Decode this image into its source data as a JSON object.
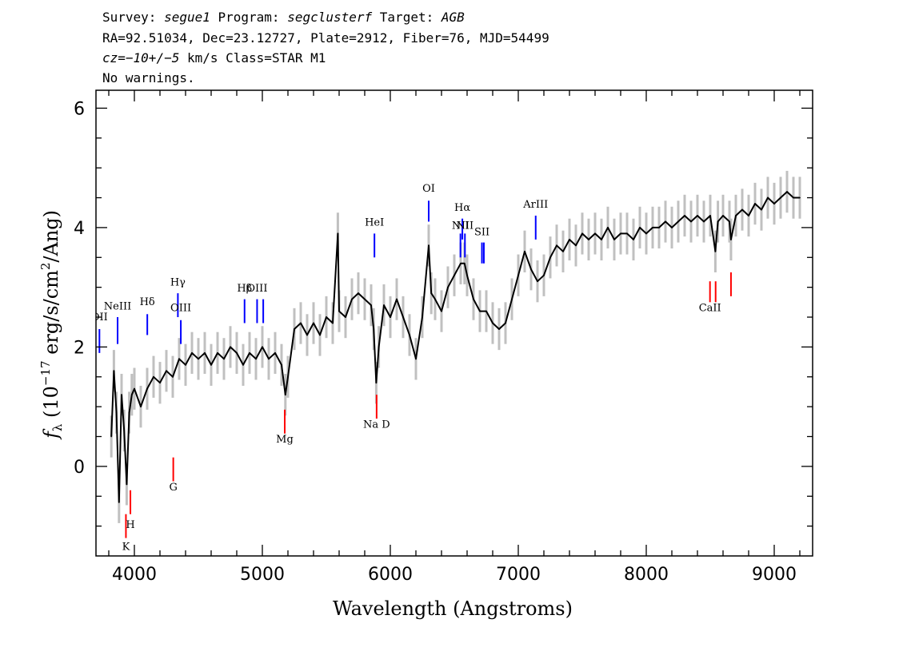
{
  "header": {
    "line1": {
      "p1": "Survey: ",
      "survey": "segue1",
      "p2": " Program: ",
      "program": "segclusterf",
      "p3": " Target: ",
      "target": "AGB"
    },
    "line2": "RA=92.51034, Dec=23.12727, Plate=2912, Fiber=76, MJD=54499",
    "line3": {
      "cz": "cz",
      "eq": "=",
      "val": "−10+/−5",
      "rest": " km/s Class=STAR M1"
    },
    "line4": "No warnings."
  },
  "chart_data": {
    "type": "line",
    "title": "",
    "xlabel": "Wavelength (Angstroms)",
    "ylabel": "f_λ (10^-17 erg/s/cm^2/Ang)",
    "ylabel_parts": {
      "f": "f",
      "sub": "λ",
      "pre": " (10",
      "exp1": "−17",
      "mid": " erg/s/cm",
      "exp2": "2",
      "post": "/Ang)"
    },
    "xlim": [
      3700,
      9300
    ],
    "ylim": [
      -1.5,
      6.3
    ],
    "x_ticks": [
      4000,
      5000,
      6000,
      7000,
      8000,
      9000
    ],
    "x_tick_labels": [
      "4000",
      "5000",
      "6000",
      "7000",
      "8000",
      "9000"
    ],
    "y_ticks": [
      0,
      2,
      4,
      6
    ],
    "y_tick_labels": [
      "0",
      "2",
      "4",
      "6"
    ],
    "colors": {
      "flux": "#000000",
      "error": "#c0c0c0",
      "emission": "#0000ff",
      "absorption": "#ff0000"
    },
    "series": [
      {
        "points": [
          [
            3820,
            0.5
          ],
          [
            3840,
            1.6
          ],
          [
            3860,
            0.9
          ],
          [
            3880,
            -0.6
          ],
          [
            3900,
            1.2
          ],
          [
            3920,
            0.6
          ],
          [
            3940,
            -0.3
          ],
          [
            3960,
            0.9
          ],
          [
            3980,
            1.2
          ],
          [
            4000,
            1.3
          ],
          [
            4050,
            1.0
          ],
          [
            4100,
            1.3
          ],
          [
            4150,
            1.5
          ],
          [
            4200,
            1.4
          ],
          [
            4250,
            1.6
          ],
          [
            4300,
            1.5
          ],
          [
            4350,
            1.8
          ],
          [
            4400,
            1.7
          ],
          [
            4450,
            1.9
          ],
          [
            4500,
            1.8
          ],
          [
            4550,
            1.9
          ],
          [
            4600,
            1.7
          ],
          [
            4650,
            1.9
          ],
          [
            4700,
            1.8
          ],
          [
            4750,
            2.0
          ],
          [
            4800,
            1.9
          ],
          [
            4850,
            1.7
          ],
          [
            4900,
            1.9
          ],
          [
            4950,
            1.8
          ],
          [
            5000,
            2.0
          ],
          [
            5050,
            1.8
          ],
          [
            5100,
            1.9
          ],
          [
            5150,
            1.7
          ],
          [
            5180,
            1.2
          ],
          [
            5200,
            1.5
          ],
          [
            5250,
            2.3
          ],
          [
            5300,
            2.4
          ],
          [
            5350,
            2.2
          ],
          [
            5400,
            2.4
          ],
          [
            5450,
            2.2
          ],
          [
            5500,
            2.5
          ],
          [
            5550,
            2.4
          ],
          [
            5590,
            3.9
          ],
          [
            5600,
            2.6
          ],
          [
            5650,
            2.5
          ],
          [
            5700,
            2.8
          ],
          [
            5750,
            2.9
          ],
          [
            5800,
            2.8
          ],
          [
            5850,
            2.7
          ],
          [
            5870,
            2.3
          ],
          [
            5890,
            1.4
          ],
          [
            5910,
            2.0
          ],
          [
            5950,
            2.7
          ],
          [
            6000,
            2.5
          ],
          [
            6050,
            2.8
          ],
          [
            6100,
            2.5
          ],
          [
            6150,
            2.2
          ],
          [
            6200,
            1.8
          ],
          [
            6250,
            2.5
          ],
          [
            6300,
            3.7
          ],
          [
            6320,
            2.9
          ],
          [
            6350,
            2.8
          ],
          [
            6400,
            2.6
          ],
          [
            6450,
            3.0
          ],
          [
            6500,
            3.2
          ],
          [
            6550,
            3.4
          ],
          [
            6580,
            3.4
          ],
          [
            6600,
            3.2
          ],
          [
            6650,
            2.8
          ],
          [
            6700,
            2.6
          ],
          [
            6750,
            2.6
          ],
          [
            6800,
            2.4
          ],
          [
            6850,
            2.3
          ],
          [
            6900,
            2.4
          ],
          [
            6950,
            2.8
          ],
          [
            7000,
            3.2
          ],
          [
            7050,
            3.6
          ],
          [
            7100,
            3.3
          ],
          [
            7150,
            3.1
          ],
          [
            7200,
            3.2
          ],
          [
            7250,
            3.5
          ],
          [
            7300,
            3.7
          ],
          [
            7350,
            3.6
          ],
          [
            7400,
            3.8
          ],
          [
            7450,
            3.7
          ],
          [
            7500,
            3.9
          ],
          [
            7550,
            3.8
          ],
          [
            7600,
            3.9
          ],
          [
            7650,
            3.8
          ],
          [
            7700,
            4.0
          ],
          [
            7750,
            3.8
          ],
          [
            7800,
            3.9
          ],
          [
            7850,
            3.9
          ],
          [
            7900,
            3.8
          ],
          [
            7950,
            4.0
          ],
          [
            8000,
            3.9
          ],
          [
            8050,
            4.0
          ],
          [
            8100,
            4.0
          ],
          [
            8150,
            4.1
          ],
          [
            8200,
            4.0
          ],
          [
            8250,
            4.1
          ],
          [
            8300,
            4.2
          ],
          [
            8350,
            4.1
          ],
          [
            8400,
            4.2
          ],
          [
            8450,
            4.1
          ],
          [
            8500,
            4.2
          ],
          [
            8540,
            3.6
          ],
          [
            8560,
            4.1
          ],
          [
            8600,
            4.2
          ],
          [
            8650,
            4.1
          ],
          [
            8662,
            3.8
          ],
          [
            8700,
            4.2
          ],
          [
            8750,
            4.3
          ],
          [
            8800,
            4.2
          ],
          [
            8850,
            4.4
          ],
          [
            8900,
            4.3
          ],
          [
            8950,
            4.5
          ],
          [
            9000,
            4.4
          ],
          [
            9050,
            4.5
          ],
          [
            9100,
            4.6
          ],
          [
            9150,
            4.5
          ],
          [
            9200,
            4.5
          ]
        ]
      }
    ],
    "emission_lines": [
      {
        "label": "OII",
        "x": 3727,
        "y1": 1.9,
        "y2": 2.3,
        "label_y": 2.45
      },
      {
        "label": "NeIII",
        "x": 3869,
        "y1": 2.05,
        "y2": 2.5,
        "label_y": 2.63
      },
      {
        "label": "Hδ",
        "x": 4101,
        "y1": 2.2,
        "y2": 2.55,
        "label_y": 2.7
      },
      {
        "label": "Hγ",
        "x": 4340,
        "y1": 2.5,
        "y2": 2.9,
        "label_y": 3.03
      },
      {
        "label": "OIII",
        "x": 4363,
        "y1": 2.05,
        "y2": 2.45,
        "label_y": 2.6
      },
      {
        "label": "Hβ",
        "x": 4861,
        "y1": 2.4,
        "y2": 2.8,
        "label_y": 2.93
      },
      {
        "label": "OIII",
        "x": 4959,
        "y1": 2.4,
        "y2": 2.8,
        "label_y": 2.93
      },
      {
        "label": "",
        "x": 5007,
        "y1": 2.4,
        "y2": 2.8,
        "label_y": 0
      },
      {
        "label": "HeI",
        "x": 5876,
        "y1": 3.5,
        "y2": 3.9,
        "label_y": 4.03
      },
      {
        "label": "OI",
        "x": 6300,
        "y1": 4.1,
        "y2": 4.45,
        "label_y": 4.6
      },
      {
        "label": "NII",
        "x": 6548,
        "y1": 3.5,
        "y2": 3.9,
        "label_y": 3.98
      },
      {
        "label": "Hα",
        "x": 6563,
        "y1": 3.8,
        "y2": 4.15,
        "label_y": 4.28
      },
      {
        "label": "NII",
        "x": 6583,
        "y1": 3.5,
        "y2": 3.9,
        "label_y": 3.98
      },
      {
        "label": "SII",
        "x": 6716,
        "y1": 3.4,
        "y2": 3.75,
        "label_y": 3.87
      },
      {
        "label": "",
        "x": 6731,
        "y1": 3.4,
        "y2": 3.75,
        "label_y": 0
      },
      {
        "label": "ArIII",
        "x": 7136,
        "y1": 3.8,
        "y2": 4.2,
        "label_y": 4.33
      }
    ],
    "absorption_lines": [
      {
        "label": "K",
        "x": 3934,
        "y1": -1.2,
        "y2": -0.8,
        "label_y": -1.4
      },
      {
        "label": "H",
        "x": 3969,
        "y1": -0.8,
        "y2": -0.4,
        "label_y": -1.03
      },
      {
        "label": "G",
        "x": 4304,
        "y1": -0.25,
        "y2": 0.15,
        "label_y": -0.4
      },
      {
        "label": "Mg",
        "x": 5175,
        "y1": 0.55,
        "y2": 0.95,
        "label_y": 0.4
      },
      {
        "label": "Na D",
        "x": 5893,
        "y1": 0.8,
        "y2": 1.2,
        "label_y": 0.65
      },
      {
        "label": "CaII",
        "x": 8498,
        "y1": 2.75,
        "y2": 3.1,
        "label_y": 2.6
      },
      {
        "label": "",
        "x": 8542,
        "y1": 2.75,
        "y2": 3.1,
        "label_y": 0
      },
      {
        "label": "",
        "x": 8662,
        "y1": 2.85,
        "y2": 3.25,
        "label_y": 0
      }
    ]
  }
}
